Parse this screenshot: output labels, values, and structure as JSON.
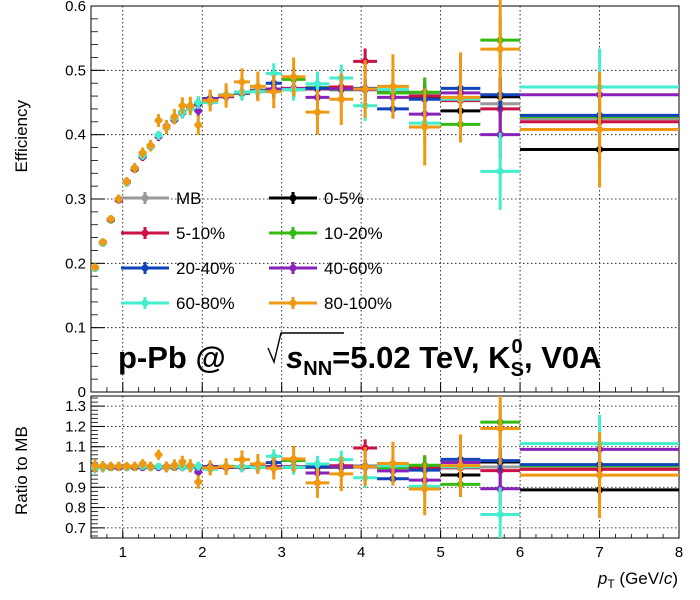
{
  "chart_data": [
    {
      "type": "scatter",
      "panel": "efficiency",
      "title": "",
      "ylabel": "Efficiency",
      "xlim": [
        0.6,
        8.0
      ],
      "ylim": [
        0.0,
        0.6
      ],
      "y_ticks": [
        "0.1",
        "0.2",
        "0.3",
        "0.4",
        "0.5",
        "0.6"
      ],
      "y_tick_values": [
        0.1,
        0.2,
        0.3,
        0.4,
        0.5,
        0.6
      ],
      "grid": true,
      "legend_position": "center-left",
      "annotation": {
        "prefix": "p-Pb @",
        "sym": "s",
        "sym_sub": "NN",
        "middle": "=5.02 TeV, K",
        "k_sup": "0",
        "k_sub": "S",
        "suffix": ", V0A"
      },
      "bins": [
        [
          0.6,
          0.7
        ],
        [
          0.7,
          0.8
        ],
        [
          0.8,
          0.9
        ],
        [
          0.9,
          1.0
        ],
        [
          1.0,
          1.1
        ],
        [
          1.1,
          1.2
        ],
        [
          1.2,
          1.3
        ],
        [
          1.3,
          1.4
        ],
        [
          1.4,
          1.5
        ],
        [
          1.5,
          1.6
        ],
        [
          1.6,
          1.7
        ],
        [
          1.7,
          1.8
        ],
        [
          1.8,
          1.9
        ],
        [
          1.9,
          2.0
        ],
        [
          2.0,
          2.2
        ],
        [
          2.2,
          2.4
        ],
        [
          2.4,
          2.6
        ],
        [
          2.6,
          2.8
        ],
        [
          2.8,
          3.0
        ],
        [
          3.0,
          3.3
        ],
        [
          3.3,
          3.6
        ],
        [
          3.6,
          3.9
        ],
        [
          3.9,
          4.2
        ],
        [
          4.2,
          4.6
        ],
        [
          4.6,
          5.0
        ],
        [
          5.0,
          5.5
        ],
        [
          5.5,
          6.0
        ],
        [
          6.0,
          8.0
        ]
      ],
      "series": [
        {
          "name": "MB",
          "color": "#999999",
          "values": [
            0.193,
            0.232,
            0.268,
            0.299,
            0.326,
            0.347,
            0.366,
            0.382,
            0.398,
            0.412,
            0.424,
            0.434,
            0.442,
            0.448,
            0.455,
            0.46,
            0.465,
            0.468,
            0.47,
            0.471,
            0.472,
            0.471,
            0.47,
            0.467,
            0.462,
            0.455,
            0.448,
            0.425
          ],
          "err": [
            0.002,
            0.002,
            0.002,
            0.002,
            0.002,
            0.002,
            0.002,
            0.003,
            0.003,
            0.003,
            0.003,
            0.003,
            0.004,
            0.004,
            0.004,
            0.004,
            0.005,
            0.005,
            0.005,
            0.005,
            0.006,
            0.006,
            0.006,
            0.007,
            0.008,
            0.009,
            0.01,
            0.012
          ]
        },
        {
          "name": "0-5%",
          "color": "#000000",
          "values": [
            0.193,
            0.233,
            0.268,
            0.298,
            0.327,
            0.346,
            0.367,
            0.381,
            0.399,
            0.411,
            0.423,
            0.435,
            0.441,
            0.449,
            0.455,
            0.461,
            0.464,
            0.469,
            0.471,
            0.47,
            0.473,
            0.47,
            0.471,
            0.466,
            0.458,
            0.437,
            0.459,
            0.377
          ],
          "err": [
            0.004,
            0.004,
            0.004,
            0.004,
            0.004,
            0.004,
            0.005,
            0.005,
            0.005,
            0.006,
            0.006,
            0.007,
            0.007,
            0.008,
            0.008,
            0.009,
            0.01,
            0.01,
            0.011,
            0.012,
            0.013,
            0.014,
            0.015,
            0.017,
            0.02,
            0.024,
            0.03,
            0.025
          ]
        },
        {
          "name": "5-10%",
          "color": "#cc1144",
          "values": [
            0.192,
            0.231,
            0.269,
            0.3,
            0.325,
            0.348,
            0.365,
            0.383,
            0.397,
            0.413,
            0.425,
            0.433,
            0.443,
            0.447,
            0.456,
            0.459,
            0.466,
            0.467,
            0.469,
            0.472,
            0.471,
            0.474,
            0.514,
            0.468,
            0.46,
            0.453,
            0.44,
            0.42
          ],
          "err": [
            0.005,
            0.005,
            0.005,
            0.005,
            0.005,
            0.006,
            0.006,
            0.006,
            0.007,
            0.007,
            0.008,
            0.008,
            0.009,
            0.009,
            0.01,
            0.011,
            0.012,
            0.013,
            0.014,
            0.015,
            0.017,
            0.019,
            0.02,
            0.023,
            0.027,
            0.032,
            0.04,
            0.035
          ]
        },
        {
          "name": "10-20%",
          "color": "#33bb11",
          "values": [
            0.194,
            0.233,
            0.267,
            0.299,
            0.326,
            0.347,
            0.367,
            0.382,
            0.398,
            0.411,
            0.424,
            0.435,
            0.442,
            0.449,
            0.454,
            0.461,
            0.464,
            0.469,
            0.47,
            0.486,
            0.473,
            0.47,
            0.47,
            0.465,
            0.466,
            0.416,
            0.547,
            0.428
          ],
          "err": [
            0.004,
            0.004,
            0.004,
            0.004,
            0.005,
            0.005,
            0.005,
            0.005,
            0.006,
            0.006,
            0.007,
            0.007,
            0.008,
            0.008,
            0.009,
            0.01,
            0.011,
            0.011,
            0.012,
            0.013,
            0.015,
            0.016,
            0.018,
            0.02,
            0.023,
            0.028,
            0.035,
            0.03
          ]
        },
        {
          "name": "20-40%",
          "color": "#1144bb",
          "values": [
            0.193,
            0.232,
            0.268,
            0.299,
            0.326,
            0.348,
            0.366,
            0.381,
            0.398,
            0.412,
            0.425,
            0.434,
            0.441,
            0.448,
            0.456,
            0.46,
            0.465,
            0.468,
            0.48,
            0.471,
            0.472,
            0.471,
            0.472,
            0.44,
            0.455,
            0.472,
            0.462,
            0.43
          ],
          "err": [
            0.003,
            0.003,
            0.003,
            0.003,
            0.004,
            0.004,
            0.004,
            0.004,
            0.005,
            0.005,
            0.005,
            0.006,
            0.006,
            0.007,
            0.007,
            0.008,
            0.008,
            0.009,
            0.01,
            0.01,
            0.011,
            0.012,
            0.013,
            0.015,
            0.017,
            0.02,
            0.025,
            0.02
          ]
        },
        {
          "name": "40-60%",
          "color": "#8822bb",
          "values": [
            0.193,
            0.232,
            0.268,
            0.298,
            0.326,
            0.347,
            0.366,
            0.382,
            0.397,
            0.412,
            0.424,
            0.434,
            0.442,
            0.437,
            0.455,
            0.46,
            0.465,
            0.468,
            0.471,
            0.471,
            0.458,
            0.471,
            0.47,
            0.458,
            0.432,
            0.465,
            0.4,
            0.462
          ],
          "err": [
            0.004,
            0.004,
            0.004,
            0.004,
            0.005,
            0.005,
            0.005,
            0.006,
            0.006,
            0.006,
            0.007,
            0.007,
            0.008,
            0.009,
            0.009,
            0.01,
            0.011,
            0.012,
            0.013,
            0.014,
            0.015,
            0.017,
            0.019,
            0.021,
            0.025,
            0.03,
            0.038,
            0.033
          ]
        },
        {
          "name": "60-80%",
          "color": "#44eecc",
          "values": [
            0.192,
            0.231,
            0.269,
            0.3,
            0.325,
            0.348,
            0.367,
            0.381,
            0.399,
            0.411,
            0.425,
            0.434,
            0.44,
            0.45,
            0.45,
            0.462,
            0.466,
            0.467,
            0.495,
            0.47,
            0.479,
            0.488,
            0.445,
            0.47,
            0.418,
            0.455,
            0.343,
            0.474
          ],
          "err": [
            0.005,
            0.005,
            0.005,
            0.005,
            0.006,
            0.006,
            0.006,
            0.007,
            0.007,
            0.008,
            0.008,
            0.009,
            0.01,
            0.01,
            0.011,
            0.012,
            0.013,
            0.014,
            0.016,
            0.017,
            0.019,
            0.021,
            0.024,
            0.027,
            0.032,
            0.04,
            0.06,
            0.06
          ]
        },
        {
          "name": "80-100%",
          "color": "#ee9911",
          "values": [
            0.194,
            0.233,
            0.269,
            0.3,
            0.327,
            0.348,
            0.372,
            0.383,
            0.422,
            0.412,
            0.428,
            0.445,
            0.445,
            0.415,
            0.453,
            0.461,
            0.482,
            0.475,
            0.467,
            0.49,
            0.435,
            0.455,
            0.471,
            0.475,
            0.412,
            0.458,
            0.533,
            0.408
          ],
          "err": [
            0.006,
            0.006,
            0.006,
            0.007,
            0.007,
            0.008,
            0.008,
            0.009,
            0.01,
            0.011,
            0.012,
            0.013,
            0.014,
            0.015,
            0.017,
            0.019,
            0.021,
            0.023,
            0.026,
            0.03,
            0.035,
            0.04,
            0.045,
            0.05,
            0.06,
            0.07,
            0.08,
            0.09
          ]
        }
      ]
    },
    {
      "type": "scatter",
      "panel": "ratio",
      "title": "",
      "ylabel": "Ratio to MB",
      "xlabel_main": "p",
      "xlabel_sub": "T",
      "xlabel_rest": " (GeV/",
      "xlabel_italic": "c",
      "xlabel_close": ")",
      "xlim": [
        0.6,
        8.0
      ],
      "ylim": [
        0.65,
        1.35
      ],
      "x_ticks": [
        "1",
        "2",
        "3",
        "4",
        "5",
        "6",
        "7",
        "8"
      ],
      "x_tick_values": [
        1,
        2,
        3,
        4,
        5,
        6,
        7,
        8
      ],
      "y_ticks": [
        "0.7",
        "0.8",
        "0.9",
        "1",
        "1.1",
        "1.2",
        "1.3"
      ],
      "y_tick_values": [
        0.7,
        0.8,
        0.9,
        1.0,
        1.1,
        1.2,
        1.3
      ],
      "grid": true
    }
  ]
}
